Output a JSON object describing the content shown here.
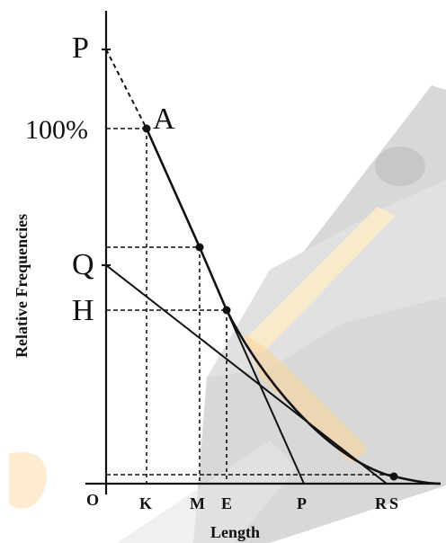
{
  "diagram": {
    "point_labels": {
      "p_top": "P",
      "a": "A",
      "q": "Q",
      "h": "H"
    },
    "y_tick_100": "100%",
    "x_ticks": {
      "o": "O",
      "k": "K",
      "m": "M",
      "e": "E",
      "p": "P",
      "r": "R",
      "s": "S"
    },
    "y_axis_title": "Relative Frequencies",
    "x_axis_title": "Length"
  },
  "colors": {
    "ink": "#111111",
    "watermark_gray": "#b0b0b0",
    "watermark_orange": "#f6b24a",
    "watermark_pencil": "#f5d9a3"
  }
}
